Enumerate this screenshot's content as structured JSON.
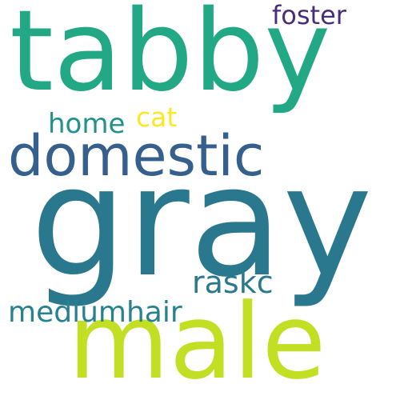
{
  "words": {
    "tabby": {
      "text": "tabby",
      "color": "#22a884"
    },
    "gray": {
      "text": "gray",
      "color": "#2a788e"
    },
    "domestic": {
      "text": "domestic",
      "color": "#355f8d"
    },
    "male": {
      "text": "male",
      "color": "#c2df23"
    },
    "foster": {
      "text": "foster",
      "color": "#472d7b"
    },
    "home": {
      "text": "home",
      "color": "#21918c"
    },
    "cat": {
      "text": "cat",
      "color": "#fde725"
    },
    "raskc": {
      "text": "raskc",
      "color": "#2a788e"
    },
    "mediumhair": {
      "text": "mediumhair",
      "color": "#26828e"
    }
  }
}
